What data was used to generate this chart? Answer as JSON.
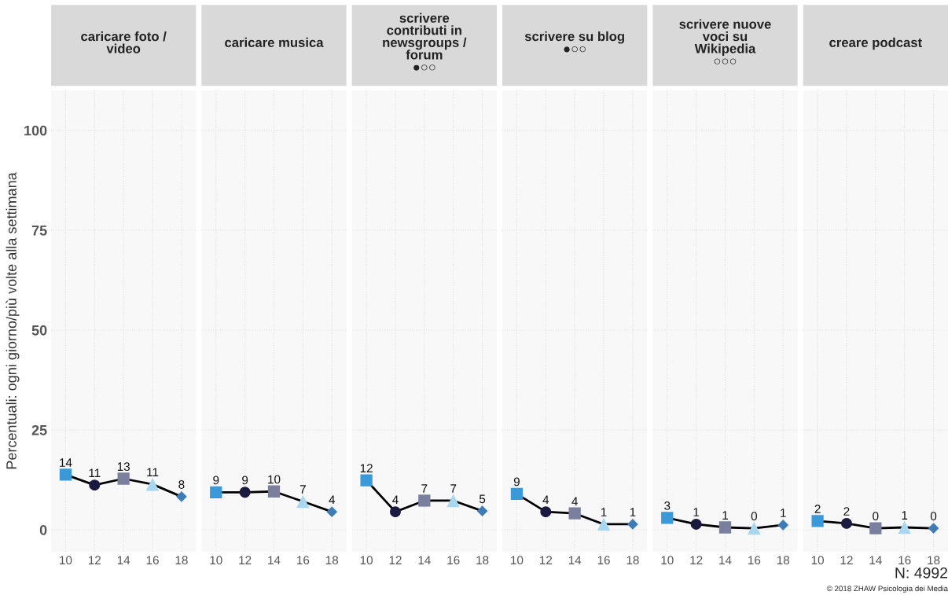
{
  "chart_data": [
    {
      "type": "line",
      "title": "caricare foto /\nvideo",
      "ylabel": "Percentuali: ogni giorno/più volte alla settimana",
      "x": [
        10,
        12,
        14,
        16,
        18
      ],
      "xlim": [
        9,
        19
      ],
      "xticks": [
        10,
        12,
        14,
        16,
        18
      ],
      "ylim": [
        -5.5,
        110
      ],
      "yticks": [
        0,
        25,
        50,
        75,
        100
      ],
      "grid": true,
      "legend": false,
      "series": [
        {
          "type": "line",
          "color": "#000000",
          "values": [
            13.8,
            11.2,
            12.8,
            11.4,
            8.3
          ],
          "value_labels": [
            "14",
            "11",
            "13",
            "11",
            "8"
          ]
        },
        {
          "type": "scatter",
          "x": [
            10
          ],
          "values": [
            13.8
          ],
          "color": "#3a9ad9",
          "marker": "square"
        },
        {
          "type": "scatter",
          "x": [
            12
          ],
          "values": [
            11.2
          ],
          "color": "#1a1a40",
          "marker": "circle"
        },
        {
          "type": "scatter",
          "x": [
            14
          ],
          "values": [
            12.8
          ],
          "color": "#7a7f9e",
          "marker": "square"
        },
        {
          "type": "scatter",
          "x": [
            16
          ],
          "values": [
            11.4
          ],
          "color": "#a8d8f0",
          "marker": "triangle"
        },
        {
          "type": "scatter",
          "x": [
            18
          ],
          "values": [
            8.3
          ],
          "color": "#3e7cb8",
          "marker": "diamond"
        }
      ]
    },
    {
      "type": "line",
      "title": "caricare musica",
      "x": [
        10,
        12,
        14,
        16,
        18
      ],
      "xlim": [
        9,
        19
      ],
      "xticks": [
        10,
        12,
        14,
        16,
        18
      ],
      "ylim": [
        -5.5,
        110
      ],
      "grid": true,
      "legend": false,
      "tick_labels": "x",
      "series": [
        {
          "type": "line",
          "color": "#000000",
          "values": [
            9.4,
            9.4,
            9.6,
            7.1,
            4.5
          ],
          "value_labels": [
            "9",
            "9",
            "10",
            "7",
            "4"
          ]
        },
        {
          "type": "scatter",
          "x": [
            10
          ],
          "values": [
            9.4
          ],
          "color": "#3a9ad9",
          "marker": "square"
        },
        {
          "type": "scatter",
          "x": [
            12
          ],
          "values": [
            9.4
          ],
          "color": "#1a1a40",
          "marker": "circle"
        },
        {
          "type": "scatter",
          "x": [
            14
          ],
          "values": [
            9.6
          ],
          "color": "#7a7f9e",
          "marker": "square"
        },
        {
          "type": "scatter",
          "x": [
            16
          ],
          "values": [
            7.1
          ],
          "color": "#a8d8f0",
          "marker": "triangle"
        },
        {
          "type": "scatter",
          "x": [
            18
          ],
          "values": [
            4.5
          ],
          "color": "#3e7cb8",
          "marker": "diamond"
        }
      ]
    },
    {
      "type": "line",
      "title": "scrivere\ncontributi in\nnewsgroups /\nforum\n●○○",
      "x": [
        10,
        12,
        14,
        16,
        18
      ],
      "xlim": [
        9,
        19
      ],
      "xticks": [
        10,
        12,
        14,
        16,
        18
      ],
      "ylim": [
        -5.5,
        110
      ],
      "grid": true,
      "legend": false,
      "tick_labels": "x",
      "series": [
        {
          "type": "line",
          "color": "#000000",
          "values": [
            12.4,
            4.5,
            7.3,
            7.3,
            4.7
          ],
          "value_labels": [
            "12",
            "4",
            "7",
            "7",
            "5"
          ]
        },
        {
          "type": "scatter",
          "x": [
            10
          ],
          "values": [
            12.4
          ],
          "color": "#3a9ad9",
          "marker": "square"
        },
        {
          "type": "scatter",
          "x": [
            12
          ],
          "values": [
            4.5
          ],
          "color": "#1a1a40",
          "marker": "circle"
        },
        {
          "type": "scatter",
          "x": [
            14
          ],
          "values": [
            7.3
          ],
          "color": "#7a7f9e",
          "marker": "square"
        },
        {
          "type": "scatter",
          "x": [
            16
          ],
          "values": [
            7.3
          ],
          "color": "#a8d8f0",
          "marker": "triangle"
        },
        {
          "type": "scatter",
          "x": [
            18
          ],
          "values": [
            4.7
          ],
          "color": "#3e7cb8",
          "marker": "diamond"
        }
      ]
    },
    {
      "type": "line",
      "title": "scrivere su blog\n●○○",
      "x": [
        10,
        12,
        14,
        16,
        18
      ],
      "xlim": [
        9,
        19
      ],
      "xticks": [
        10,
        12,
        14,
        16,
        18
      ],
      "ylim": [
        -5.5,
        110
      ],
      "grid": true,
      "legend": false,
      "tick_labels": "x",
      "series": [
        {
          "type": "line",
          "color": "#000000",
          "values": [
            9.0,
            4.5,
            4.1,
            1.4,
            1.4
          ],
          "value_labels": [
            "9",
            "4",
            "4",
            "1",
            "1"
          ]
        },
        {
          "type": "scatter",
          "x": [
            10
          ],
          "values": [
            9.0
          ],
          "color": "#3a9ad9",
          "marker": "square"
        },
        {
          "type": "scatter",
          "x": [
            12
          ],
          "values": [
            4.5
          ],
          "color": "#1a1a40",
          "marker": "circle"
        },
        {
          "type": "scatter",
          "x": [
            14
          ],
          "values": [
            4.1
          ],
          "color": "#7a7f9e",
          "marker": "square"
        },
        {
          "type": "scatter",
          "x": [
            16
          ],
          "values": [
            1.4
          ],
          "color": "#a8d8f0",
          "marker": "triangle"
        },
        {
          "type": "scatter",
          "x": [
            18
          ],
          "values": [
            1.4
          ],
          "color": "#3e7cb8",
          "marker": "diamond"
        }
      ]
    },
    {
      "type": "line",
      "title": "scrivere nuove\nvoci su\nWikipedia\n○○○",
      "x": [
        10,
        12,
        14,
        16,
        18
      ],
      "xlim": [
        9,
        19
      ],
      "xticks": [
        10,
        12,
        14,
        16,
        18
      ],
      "ylim": [
        -5.5,
        110
      ],
      "grid": true,
      "legend": false,
      "tick_labels": "x",
      "series": [
        {
          "type": "line",
          "color": "#000000",
          "values": [
            3.0,
            1.4,
            0.6,
            0.4,
            1.2
          ],
          "value_labels": [
            "3",
            "1",
            "1",
            "0",
            "1"
          ]
        },
        {
          "type": "scatter",
          "x": [
            10
          ],
          "values": [
            3.0
          ],
          "color": "#3a9ad9",
          "marker": "square"
        },
        {
          "type": "scatter",
          "x": [
            12
          ],
          "values": [
            1.4
          ],
          "color": "#1a1a40",
          "marker": "circle"
        },
        {
          "type": "scatter",
          "x": [
            14
          ],
          "values": [
            0.6
          ],
          "color": "#7a7f9e",
          "marker": "square"
        },
        {
          "type": "scatter",
          "x": [
            16
          ],
          "values": [
            0.4
          ],
          "color": "#a8d8f0",
          "marker": "triangle"
        },
        {
          "type": "scatter",
          "x": [
            18
          ],
          "values": [
            1.2
          ],
          "color": "#3e7cb8",
          "marker": "diamond"
        }
      ]
    },
    {
      "type": "line",
      "title": "creare podcast",
      "x": [
        10,
        12,
        14,
        16,
        18
      ],
      "xlim": [
        9,
        19
      ],
      "xticks": [
        10,
        12,
        14,
        16,
        18
      ],
      "ylim": [
        -5.5,
        110
      ],
      "grid": true,
      "legend": false,
      "tick_labels": "x",
      "annotations": [
        "N: 4992",
        "© 2018 ZHAW Psicologia dei Media"
      ],
      "series": [
        {
          "type": "line",
          "color": "#000000",
          "values": [
            2.2,
            1.6,
            0.4,
            0.6,
            0.4
          ],
          "value_labels": [
            "2",
            "2",
            "0",
            "1",
            "0"
          ]
        },
        {
          "type": "scatter",
          "x": [
            10
          ],
          "values": [
            2.2
          ],
          "color": "#3a9ad9",
          "marker": "square"
        },
        {
          "type": "scatter",
          "x": [
            12
          ],
          "values": [
            1.6
          ],
          "color": "#1a1a40",
          "marker": "circle"
        },
        {
          "type": "scatter",
          "x": [
            14
          ],
          "values": [
            0.4
          ],
          "color": "#7a7f9e",
          "marker": "square"
        },
        {
          "type": "scatter",
          "x": [
            16
          ],
          "values": [
            0.6
          ],
          "color": "#a8d8f0",
          "marker": "triangle"
        },
        {
          "type": "scatter",
          "x": [
            18
          ],
          "values": [
            0.4
          ],
          "color": "#3e7cb8",
          "marker": "diamond"
        }
      ]
    }
  ]
}
